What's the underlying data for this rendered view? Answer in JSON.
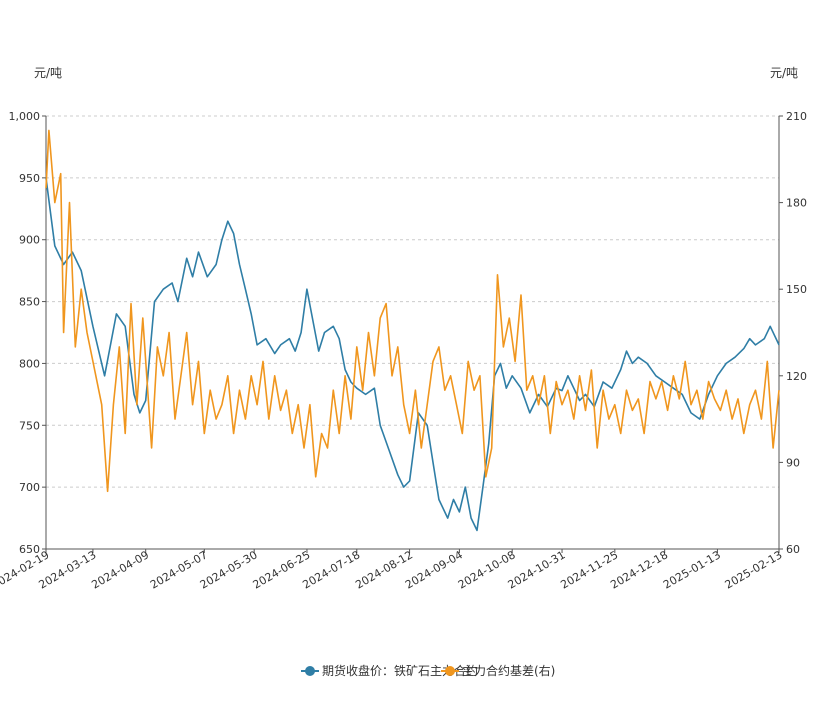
{
  "chart_data": {
    "type": "line",
    "left_axis": {
      "unit": "元/吨",
      "ylim": [
        650,
        1000
      ],
      "ticks": [
        "1,000",
        "950",
        "900",
        "850",
        "800",
        "750",
        "700",
        "650"
      ]
    },
    "right_axis": {
      "unit": "元/吨",
      "ylim": [
        60,
        210
      ],
      "ticks": [
        "210",
        "180",
        "150",
        "120",
        "90",
        "60"
      ]
    },
    "x_ticks": [
      "2024-02-19",
      "2024-03-13",
      "2024-04-09",
      "2024-05-07",
      "2024-05-30",
      "2024-06-25",
      "2024-07-18",
      "2024-08-12",
      "2024-09-04",
      "2024-10-08",
      "2024-10-31",
      "2024-11-25",
      "2024-12-18",
      "2025-01-13",
      "2025-02-13"
    ],
    "x_tick_index": [
      0,
      16,
      34,
      54,
      71,
      89,
      106,
      124,
      141,
      159,
      176,
      194,
      211,
      229,
      250
    ],
    "grid": true,
    "legend_position": "bottom",
    "series": [
      {
        "name": "期货收盘价：铁矿石主力合约",
        "axis": "left",
        "color": "#2f7ea6",
        "key_points": [
          [
            0,
            950
          ],
          [
            3,
            895
          ],
          [
            6,
            880
          ],
          [
            9,
            890
          ],
          [
            12,
            875
          ],
          [
            16,
            830
          ],
          [
            20,
            790
          ],
          [
            24,
            840
          ],
          [
            27,
            830
          ],
          [
            30,
            775
          ],
          [
            32,
            760
          ],
          [
            34,
            770
          ],
          [
            37,
            850
          ],
          [
            40,
            860
          ],
          [
            43,
            865
          ],
          [
            45,
            850
          ],
          [
            48,
            885
          ],
          [
            50,
            870
          ],
          [
            52,
            890
          ],
          [
            55,
            870
          ],
          [
            58,
            880
          ],
          [
            60,
            900
          ],
          [
            62,
            915
          ],
          [
            64,
            905
          ],
          [
            66,
            880
          ],
          [
            68,
            860
          ],
          [
            70,
            840
          ],
          [
            72,
            815
          ],
          [
            75,
            820
          ],
          [
            78,
            808
          ],
          [
            80,
            815
          ],
          [
            83,
            820
          ],
          [
            85,
            810
          ],
          [
            87,
            825
          ],
          [
            89,
            860
          ],
          [
            91,
            835
          ],
          [
            93,
            810
          ],
          [
            95,
            825
          ],
          [
            98,
            830
          ],
          [
            100,
            820
          ],
          [
            102,
            795
          ],
          [
            104,
            785
          ],
          [
            106,
            780
          ],
          [
            109,
            775
          ],
          [
            112,
            780
          ],
          [
            114,
            750
          ],
          [
            117,
            730
          ],
          [
            120,
            710
          ],
          [
            122,
            700
          ],
          [
            124,
            705
          ],
          [
            127,
            760
          ],
          [
            130,
            750
          ],
          [
            132,
            720
          ],
          [
            134,
            690
          ],
          [
            137,
            675
          ],
          [
            139,
            690
          ],
          [
            141,
            680
          ],
          [
            143,
            700
          ],
          [
            145,
            675
          ],
          [
            147,
            665
          ],
          [
            149,
            700
          ],
          [
            151,
            735
          ],
          [
            153,
            790
          ],
          [
            155,
            800
          ],
          [
            157,
            780
          ],
          [
            159,
            790
          ],
          [
            162,
            780
          ],
          [
            165,
            760
          ],
          [
            168,
            775
          ],
          [
            171,
            765
          ],
          [
            174,
            780
          ],
          [
            176,
            778
          ],
          [
            178,
            790
          ],
          [
            180,
            780
          ],
          [
            182,
            770
          ],
          [
            184,
            775
          ],
          [
            187,
            765
          ],
          [
            190,
            785
          ],
          [
            193,
            780
          ],
          [
            196,
            795
          ],
          [
            198,
            810
          ],
          [
            200,
            800
          ],
          [
            202,
            805
          ],
          [
            205,
            800
          ],
          [
            208,
            790
          ],
          [
            211,
            785
          ],
          [
            214,
            780
          ],
          [
            217,
            775
          ],
          [
            220,
            760
          ],
          [
            223,
            755
          ],
          [
            226,
            775
          ],
          [
            229,
            790
          ],
          [
            232,
            800
          ],
          [
            235,
            805
          ],
          [
            238,
            812
          ],
          [
            240,
            820
          ],
          [
            242,
            815
          ],
          [
            245,
            820
          ],
          [
            247,
            830
          ],
          [
            250,
            815
          ]
        ]
      },
      {
        "name": "主力合约基差(右)",
        "axis": "right",
        "color": "#f0961e",
        "key_points": [
          [
            0,
            185
          ],
          [
            1,
            205
          ],
          [
            3,
            180
          ],
          [
            5,
            190
          ],
          [
            6,
            135
          ],
          [
            8,
            180
          ],
          [
            10,
            130
          ],
          [
            12,
            150
          ],
          [
            14,
            135
          ],
          [
            16,
            125
          ],
          [
            19,
            110
          ],
          [
            21,
            80
          ],
          [
            23,
            110
          ],
          [
            25,
            130
          ],
          [
            27,
            100
          ],
          [
            29,
            145
          ],
          [
            31,
            110
          ],
          [
            33,
            140
          ],
          [
            36,
            95
          ],
          [
            38,
            130
          ],
          [
            40,
            120
          ],
          [
            42,
            135
          ],
          [
            44,
            105
          ],
          [
            46,
            120
          ],
          [
            48,
            135
          ],
          [
            50,
            110
          ],
          [
            52,
            125
          ],
          [
            54,
            100
          ],
          [
            56,
            115
          ],
          [
            58,
            105
          ],
          [
            60,
            110
          ],
          [
            62,
            120
          ],
          [
            64,
            100
          ],
          [
            66,
            115
          ],
          [
            68,
            105
          ],
          [
            70,
            120
          ],
          [
            72,
            110
          ],
          [
            74,
            125
          ],
          [
            76,
            105
          ],
          [
            78,
            120
          ],
          [
            80,
            108
          ],
          [
            82,
            115
          ],
          [
            84,
            100
          ],
          [
            86,
            110
          ],
          [
            88,
            95
          ],
          [
            90,
            110
          ],
          [
            92,
            85
          ],
          [
            94,
            100
          ],
          [
            96,
            95
          ],
          [
            98,
            115
          ],
          [
            100,
            100
          ],
          [
            102,
            120
          ],
          [
            104,
            105
          ],
          [
            106,
            130
          ],
          [
            108,
            115
          ],
          [
            110,
            135
          ],
          [
            112,
            120
          ],
          [
            114,
            140
          ],
          [
            116,
            145
          ],
          [
            118,
            120
          ],
          [
            120,
            130
          ],
          [
            122,
            110
          ],
          [
            124,
            100
          ],
          [
            126,
            115
          ],
          [
            128,
            95
          ],
          [
            130,
            110
          ],
          [
            132,
            125
          ],
          [
            134,
            130
          ],
          [
            136,
            115
          ],
          [
            138,
            120
          ],
          [
            140,
            110
          ],
          [
            142,
            100
          ],
          [
            144,
            125
          ],
          [
            146,
            115
          ],
          [
            148,
            120
          ],
          [
            150,
            85
          ],
          [
            152,
            95
          ],
          [
            154,
            155
          ],
          [
            156,
            130
          ],
          [
            158,
            140
          ],
          [
            160,
            125
          ],
          [
            162,
            148
          ],
          [
            164,
            115
          ],
          [
            166,
            120
          ],
          [
            168,
            110
          ],
          [
            170,
            120
          ],
          [
            172,
            100
          ],
          [
            174,
            118
          ],
          [
            176,
            110
          ],
          [
            178,
            115
          ],
          [
            180,
            105
          ],
          [
            182,
            120
          ],
          [
            184,
            108
          ],
          [
            186,
            122
          ],
          [
            188,
            95
          ],
          [
            190,
            115
          ],
          [
            192,
            105
          ],
          [
            194,
            110
          ],
          [
            196,
            100
          ],
          [
            198,
            115
          ],
          [
            200,
            108
          ],
          [
            202,
            112
          ],
          [
            204,
            100
          ],
          [
            206,
            118
          ],
          [
            208,
            112
          ],
          [
            210,
            118
          ],
          [
            212,
            108
          ],
          [
            214,
            120
          ],
          [
            216,
            112
          ],
          [
            218,
            125
          ],
          [
            220,
            110
          ],
          [
            222,
            115
          ],
          [
            224,
            105
          ],
          [
            226,
            118
          ],
          [
            228,
            112
          ],
          [
            230,
            108
          ],
          [
            232,
            115
          ],
          [
            234,
            105
          ],
          [
            236,
            112
          ],
          [
            238,
            100
          ],
          [
            240,
            110
          ],
          [
            242,
            115
          ],
          [
            244,
            105
          ],
          [
            246,
            125
          ],
          [
            248,
            95
          ],
          [
            250,
            115
          ]
        ]
      }
    ]
  }
}
